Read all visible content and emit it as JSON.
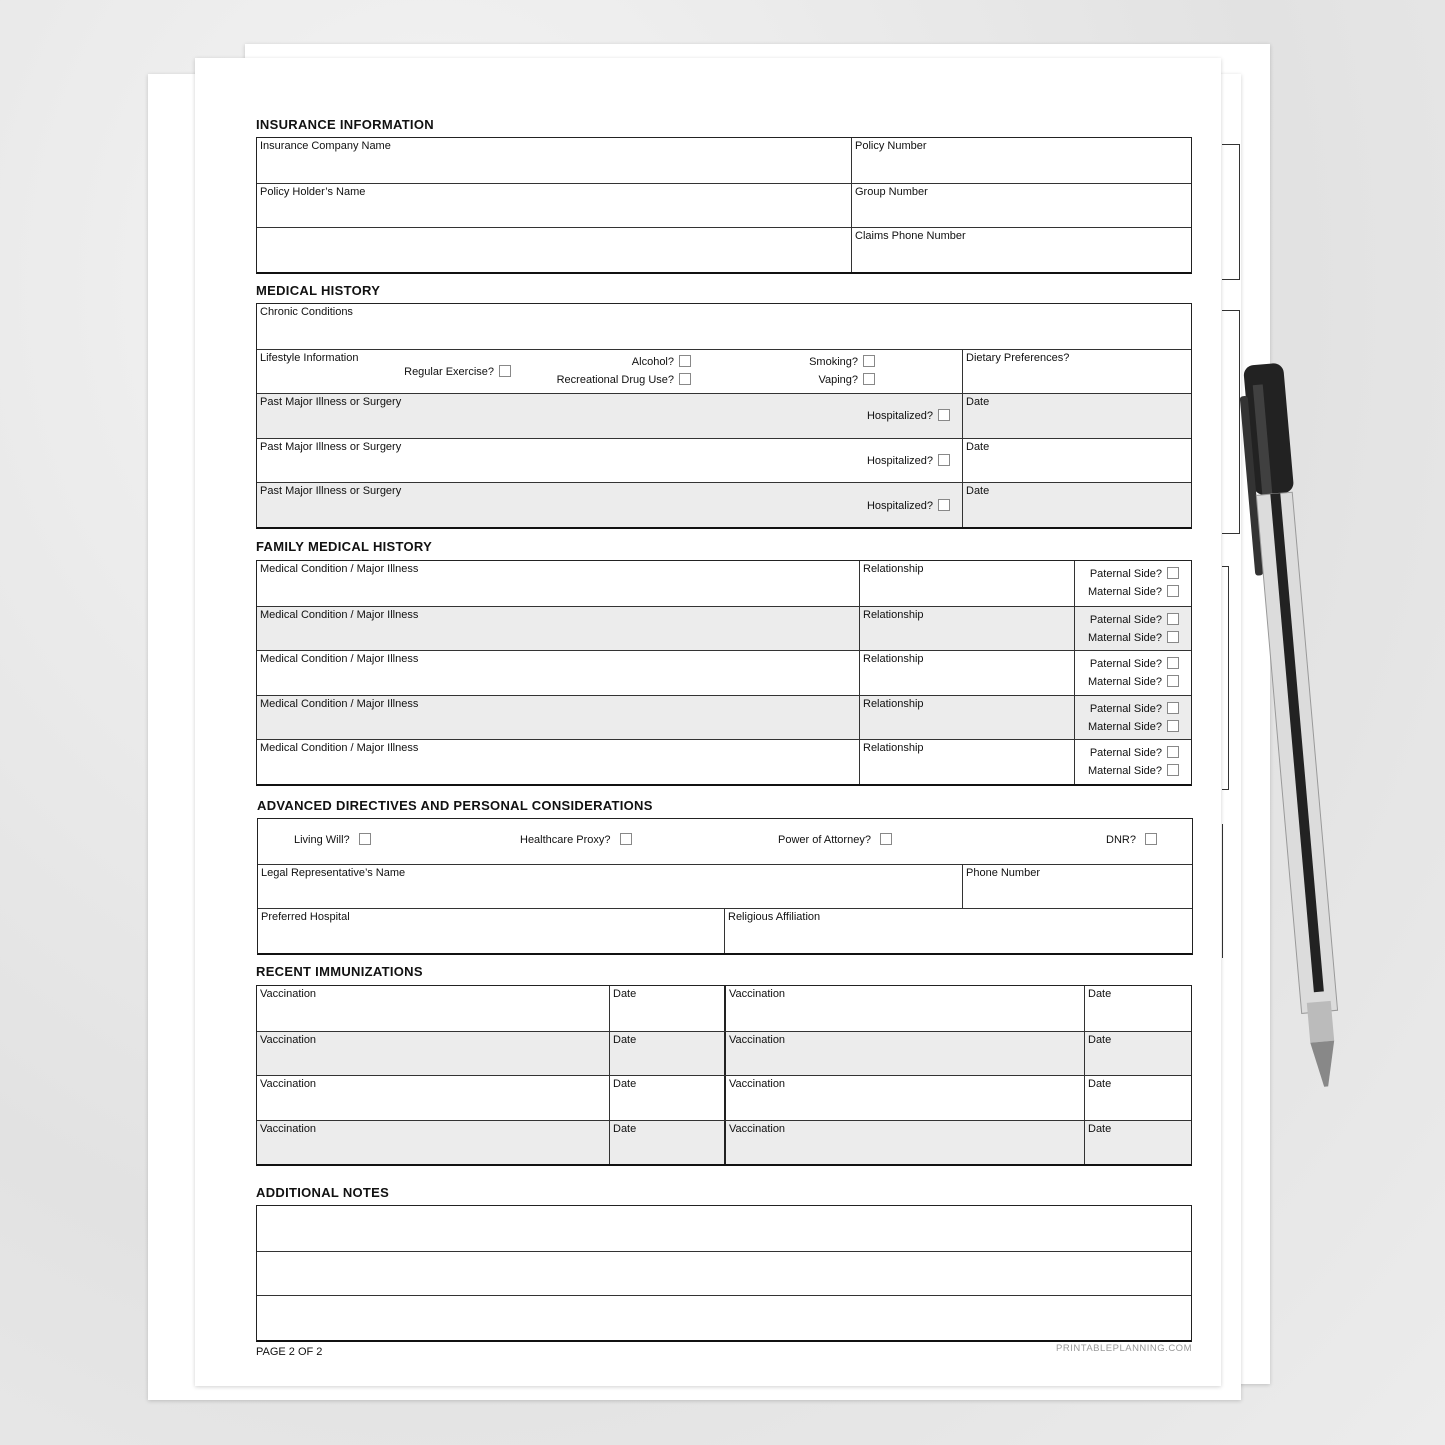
{
  "insurance": {
    "heading": "INSURANCE INFORMATION",
    "company": "Insurance Company Name",
    "policy_number": "Policy Number",
    "holder": "Policy Holder’s Name",
    "group_number": "Group Number",
    "claims_phone": "Claims Phone Number"
  },
  "medical": {
    "heading": "MEDICAL HISTORY",
    "chronic": "Chronic Conditions",
    "lifestyle": {
      "label": "Lifestyle Information",
      "exercise": "Regular Exercise?",
      "alcohol": "Alcohol?",
      "drug": "Recreational Drug Use?",
      "smoking": "Smoking?",
      "vaping": "Vaping?"
    },
    "dietary": "Dietary Preferences?",
    "illnesses": [
      {
        "label": "Past Major Illness or Surgery",
        "hospitalized": "Hospitalized?",
        "date": "Date"
      },
      {
        "label": "Past Major Illness or Surgery",
        "hospitalized": "Hospitalized?",
        "date": "Date"
      },
      {
        "label": "Past Major Illness or Surgery",
        "hospitalized": "Hospitalized?",
        "date": "Date"
      }
    ]
  },
  "family": {
    "heading": "FAMILY MEDICAL HISTORY",
    "rows": [
      {
        "condition": "Medical Condition / Major Illness",
        "relationship": "Relationship",
        "paternal": "Paternal Side?",
        "maternal": "Maternal Side?"
      },
      {
        "condition": "Medical Condition / Major Illness",
        "relationship": "Relationship",
        "paternal": "Paternal Side?",
        "maternal": "Maternal Side?"
      },
      {
        "condition": "Medical Condition / Major Illness",
        "relationship": "Relationship",
        "paternal": "Paternal Side?",
        "maternal": "Maternal Side?"
      },
      {
        "condition": "Medical Condition / Major Illness",
        "relationship": "Relationship",
        "paternal": "Paternal Side?",
        "maternal": "Maternal Side?"
      },
      {
        "condition": "Medical Condition / Major Illness",
        "relationship": "Relationship",
        "paternal": "Paternal Side?",
        "maternal": "Maternal Side?"
      }
    ]
  },
  "advanced": {
    "heading": "ADVANCED DIRECTIVES AND PERSONAL CONSIDERATIONS",
    "living_will": "Living Will?",
    "proxy": "Healthcare Proxy?",
    "poa": "Power of Attorney?",
    "dnr": "DNR?",
    "legal_rep": "Legal Representative’s Name",
    "phone": "Phone Number",
    "hospital": "Preferred Hospital",
    "religion": "Religious Affiliation"
  },
  "immunizations": {
    "heading": "RECENT IMMUNIZATIONS",
    "rows": [
      {
        "vac1": "Vaccination",
        "date1": "Date",
        "vac2": "Vaccination",
        "date2": "Date"
      },
      {
        "vac1": "Vaccination",
        "date1": "Date",
        "vac2": "Vaccination",
        "date2": "Date"
      },
      {
        "vac1": "Vaccination",
        "date1": "Date",
        "vac2": "Vaccination",
        "date2": "Date"
      },
      {
        "vac1": "Vaccination",
        "date1": "Date",
        "vac2": "Vaccination",
        "date2": "Date"
      }
    ]
  },
  "notes": {
    "heading": "ADDITIONAL NOTES"
  },
  "footer": {
    "page": "PAGE 2 OF 2",
    "brand": "PRINTABLEPLANNING.COM"
  },
  "colors": {
    "shaded_row": "#ececec",
    "background": "#e6e6e6"
  }
}
